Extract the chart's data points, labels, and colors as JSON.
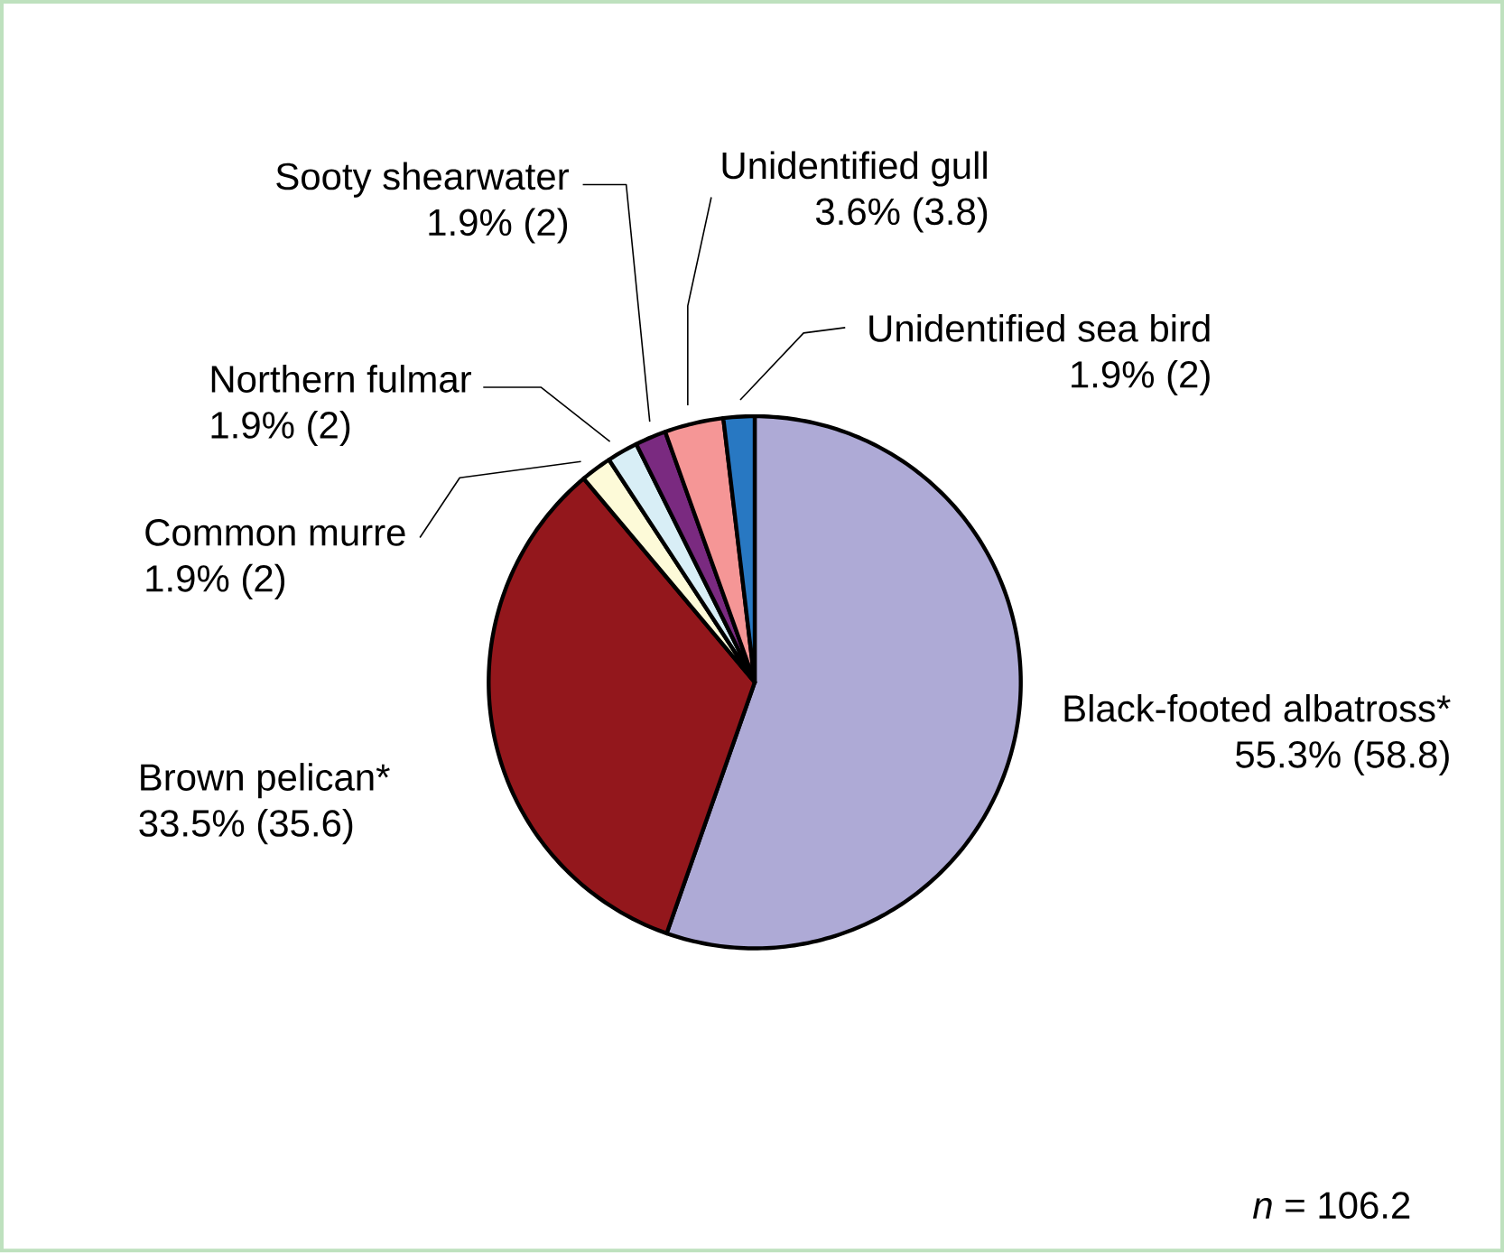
{
  "chart_data": {
    "type": "pie",
    "categories": [
      "Black-footed albatross*",
      "Brown pelican*",
      "Common murre",
      "Northern fulmar",
      "Sooty shearwater",
      "Unidentified gull",
      "Unidentified sea bird"
    ],
    "values": [
      58.8,
      35.6,
      2,
      2,
      2,
      3.8,
      2
    ],
    "value_labels": [
      "55.3% (58.8)",
      "33.5% (35.6)",
      "1.9% (2)",
      "1.9% (2)",
      "1.9% (2)",
      "3.6% (3.8)",
      "1.9% (2)"
    ],
    "colors": [
      "#aeaad6",
      "#93171c",
      "#fdfad8",
      "#d8eef6",
      "#7a2a80",
      "#f59696",
      "#2878c2"
    ],
    "annotations": [
      "*n* = 106.2"
    ]
  }
}
